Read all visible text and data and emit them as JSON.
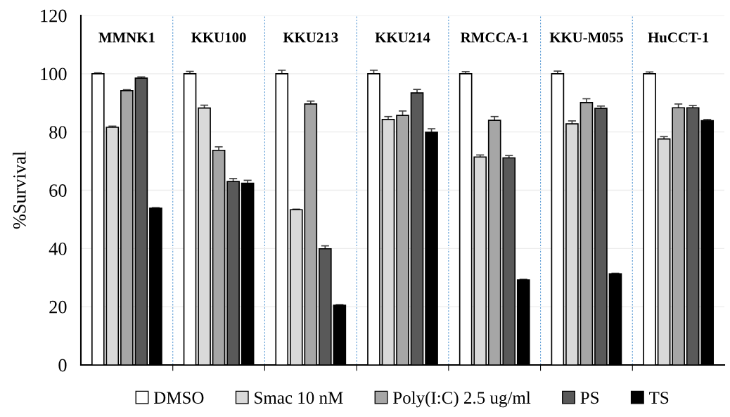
{
  "chart_data": {
    "type": "bar",
    "ylabel": "%Survival",
    "categories": [
      "MMNK1",
      "KKU100",
      "KKU213",
      "KKU214",
      "RMCCA-1",
      "KKU-M055",
      "HuCCT-1"
    ],
    "series": [
      {
        "name": "DMSO",
        "color": "#ffffff",
        "values": [
          100,
          100,
          100,
          100,
          100,
          100,
          100
        ],
        "errors": [
          0.3,
          0.8,
          1.2,
          1.2,
          0.7,
          0.9,
          0.6
        ]
      },
      {
        "name": "Smac 10 nM",
        "color": "#d9d9d9",
        "values": [
          81.6,
          88.2,
          53.3,
          84.3,
          71.4,
          82.8,
          77.6
        ],
        "errors": [
          0.4,
          1,
          0.2,
          1,
          0.7,
          1,
          0.8
        ]
      },
      {
        "name": "Poly(I:C) 2.5 ug/ml",
        "color": "#a6a6a6",
        "values": [
          94.2,
          73.7,
          89.6,
          85.7,
          84.0,
          90.1,
          88.3
        ],
        "errors": [
          0.3,
          1.2,
          1,
          1.5,
          1.3,
          1.3,
          1.3
        ]
      },
      {
        "name": "PS",
        "color": "#595959",
        "values": [
          98.5,
          63.0,
          39.9,
          93.4,
          71.1,
          88.1,
          88.3
        ],
        "errors": [
          0.4,
          1,
          1,
          1.2,
          0.8,
          0.8,
          0.8
        ]
      },
      {
        "name": "TS",
        "color": "#000000",
        "values": [
          53.8,
          62.4,
          20.5,
          79.9,
          29.2,
          31.3,
          83.9
        ],
        "errors": [
          0.2,
          1,
          0.2,
          1.2,
          0.2,
          0.2,
          0.4
        ]
      }
    ],
    "ylim": [
      0,
      120
    ],
    "yticks": [
      0,
      20,
      40,
      60,
      80,
      100,
      120
    ],
    "grid": true,
    "legend": "bottom"
  }
}
